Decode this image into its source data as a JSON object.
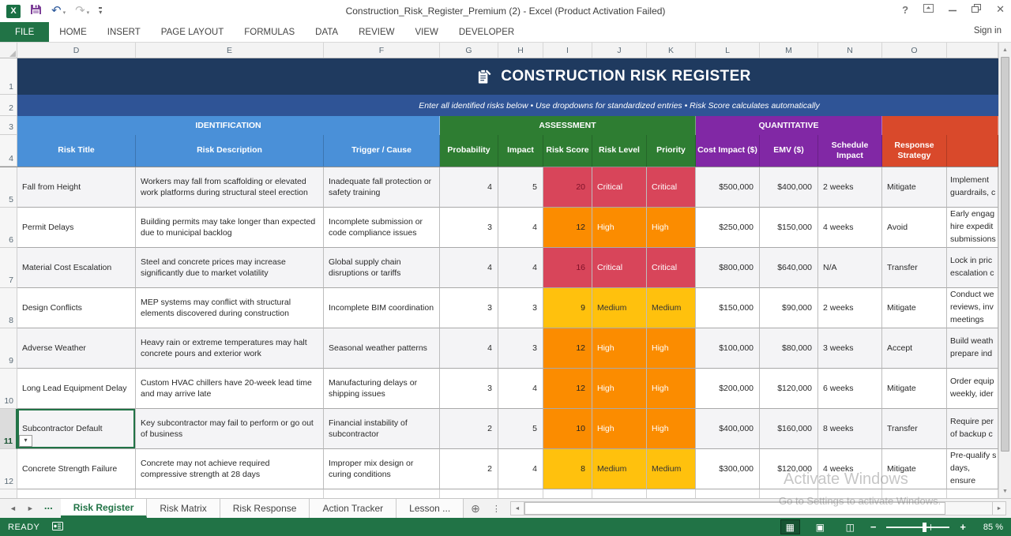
{
  "titlebar": {
    "title": "Construction_Risk_Register_Premium (2) - Excel (Product Activation Failed)",
    "sign_in": "Sign in"
  },
  "ribbon": {
    "tabs": [
      "FILE",
      "HOME",
      "INSERT",
      "PAGE LAYOUT",
      "FORMULAS",
      "DATA",
      "REVIEW",
      "VIEW",
      "DEVELOPER"
    ],
    "active_tab": "FILE"
  },
  "banner": {
    "title": "CONSTRUCTION RISK REGISTER",
    "subtitle": "Enter all identified risks below • Use dropdowns for standardized entries • Risk Score calculates automatically"
  },
  "grid": {
    "columns": [
      "D",
      "E",
      "F",
      "G",
      "H",
      "I",
      "J",
      "K",
      "L",
      "M",
      "N",
      "O"
    ],
    "row_numbers": [
      1,
      2,
      3,
      4
    ],
    "selected_cell": "D11"
  },
  "sections": [
    {
      "label": "IDENTIFICATION",
      "color": "#4a90d8"
    },
    {
      "label": "ASSESSMENT",
      "color": "#2e7d32"
    },
    {
      "label": "QUANTITATIVE",
      "color": "#8128a5"
    },
    {
      "label": "",
      "color": "#d9492b"
    }
  ],
  "table": {
    "headers": [
      {
        "label": "Risk Title",
        "color": "#4a90d8"
      },
      {
        "label": "Risk Description",
        "color": "#4a90d8"
      },
      {
        "label": "Trigger / Cause",
        "color": "#4a90d8"
      },
      {
        "label": "Probability",
        "color": "#2e7d32"
      },
      {
        "label": "Impact",
        "color": "#2e7d32"
      },
      {
        "label": "Risk Score",
        "color": "#2e7d32"
      },
      {
        "label": "Risk Level",
        "color": "#2e7d32"
      },
      {
        "label": "Priority",
        "color": "#2e7d32"
      },
      {
        "label": "Cost Impact ($)",
        "color": "#8128a5"
      },
      {
        "label": "EMV ($)",
        "color": "#8128a5"
      },
      {
        "label": "Schedule Impact",
        "color": "#8128a5"
      },
      {
        "label": "Response Strategy",
        "color": "#d9492b"
      },
      {
        "label": "",
        "color": "#d9492b"
      }
    ],
    "level_styles": {
      "Critical": {
        "bg": "#d8455a",
        "text": "#ffffff",
        "score_text": "#7d1128"
      },
      "High": {
        "bg": "#fb8c00",
        "text": "#ffffff",
        "score_text": "#222222"
      },
      "Medium": {
        "bg": "#ffc10d",
        "text": "#333333",
        "score_text": "#222222"
      }
    },
    "rows": [
      {
        "row": 5,
        "title": "Fall from Height",
        "description": "Workers may fall from scaffolding or elevated work platforms during structural steel erection",
        "trigger": "Inadequate fall protection or safety training",
        "probability": 4,
        "impact": 5,
        "score": 20,
        "level": "Critical",
        "priority": "Critical",
        "cost": "$500,000",
        "emv": "$400,000",
        "schedule": "2 weeks",
        "response": "Mitigate",
        "notes": "Implement\nguardrails, c"
      },
      {
        "row": 6,
        "title": "Permit Delays",
        "description": "Building permits may take longer than expected due to municipal backlog",
        "trigger": "Incomplete submission or code compliance issues",
        "probability": 3,
        "impact": 4,
        "score": 12,
        "level": "High",
        "priority": "High",
        "cost": "$250,000",
        "emv": "$150,000",
        "schedule": "4 weeks",
        "response": "Avoid",
        "notes": "Early engag\nhire expedit\nsubmissions"
      },
      {
        "row": 7,
        "title": "Material Cost Escalation",
        "description": "Steel and concrete prices may increase significantly due to market volatility",
        "trigger": "Global supply chain disruptions or tariffs",
        "probability": 4,
        "impact": 4,
        "score": 16,
        "level": "Critical",
        "priority": "Critical",
        "cost": "$800,000",
        "emv": "$640,000",
        "schedule": "N/A",
        "response": "Transfer",
        "notes": "Lock in pric\nescalation c"
      },
      {
        "row": 8,
        "title": "Design Conflicts",
        "description": "MEP systems may conflict with structural elements discovered during construction",
        "trigger": "Incomplete BIM coordination",
        "probability": 3,
        "impact": 3,
        "score": 9,
        "level": "Medium",
        "priority": "Medium",
        "cost": "$150,000",
        "emv": "$90,000",
        "schedule": "2 weeks",
        "response": "Mitigate",
        "notes": "Conduct we\nreviews, inv\nmeetings"
      },
      {
        "row": 9,
        "title": "Adverse Weather",
        "description": "Heavy rain or extreme temperatures may halt concrete pours and exterior work",
        "trigger": "Seasonal weather patterns",
        "probability": 4,
        "impact": 3,
        "score": 12,
        "level": "High",
        "priority": "High",
        "cost": "$100,000",
        "emv": "$80,000",
        "schedule": "3 weeks",
        "response": "Accept",
        "notes": "Build weath\nprepare ind"
      },
      {
        "row": 10,
        "title": "Long Lead Equipment Delay",
        "description": "Custom HVAC chillers have 20-week lead time and may arrive late",
        "trigger": "Manufacturing delays or shipping issues",
        "probability": 3,
        "impact": 4,
        "score": 12,
        "level": "High",
        "priority": "High",
        "cost": "$200,000",
        "emv": "$120,000",
        "schedule": "6 weeks",
        "response": "Mitigate",
        "notes": "Order equip\nweekly, ider"
      },
      {
        "row": 11,
        "title": "Subcontractor Default",
        "description": "Key subcontractor may fail to perform or go out of business",
        "trigger": "Financial instability of subcontractor",
        "probability": 2,
        "impact": 5,
        "score": 10,
        "level": "High",
        "priority": "High",
        "cost": "$400,000",
        "emv": "$160,000",
        "schedule": "8 weeks",
        "response": "Transfer",
        "notes": "Require per\nof backup c"
      },
      {
        "row": 12,
        "title": "Concrete Strength Failure",
        "description": "Concrete may not achieve required compressive strength at 28 days",
        "trigger": "Improper mix design or curing conditions",
        "probability": 2,
        "impact": 4,
        "score": 8,
        "level": "Medium",
        "priority": "Medium",
        "cost": "$300,000",
        "emv": "$120,000",
        "schedule": "4 weeks",
        "response": "Mitigate",
        "notes": "Pre-qualify s\ndays, ensure"
      }
    ]
  },
  "sheet_tabs": {
    "tabs": [
      {
        "label": "Risk Register",
        "active": true
      },
      {
        "label": "Risk Matrix",
        "active": false
      },
      {
        "label": "Risk Response",
        "active": false
      },
      {
        "label": "Action Tracker",
        "active": false
      },
      {
        "label": "Lesson ...",
        "active": false
      }
    ]
  },
  "status_bar": {
    "ready": "READY",
    "zoom": "85 %"
  },
  "watermark": {
    "line1": "Activate Windows",
    "line2": "Go to Settings to activate Windows."
  },
  "icons": {
    "scroll_up": "▲",
    "scroll_down": "▼",
    "scroll_left": "◄",
    "scroll_right": "►",
    "more_sheets": "...",
    "new_sheet": "⊕",
    "tab_dots": "⋮",
    "undo": "↶",
    "redo": "↷",
    "dropdown": "▾",
    "help": "?",
    "close": "✕",
    "excel_logo": "X",
    "normal_view": "▦",
    "page_layout_view": "▣",
    "page_break_view": "◫",
    "zoom_out": "−",
    "zoom_in": "+"
  },
  "colors": {
    "accent_green": "#217346",
    "title_banner": "#1f3a5f",
    "subtitle_banner": "#2f5496"
  }
}
